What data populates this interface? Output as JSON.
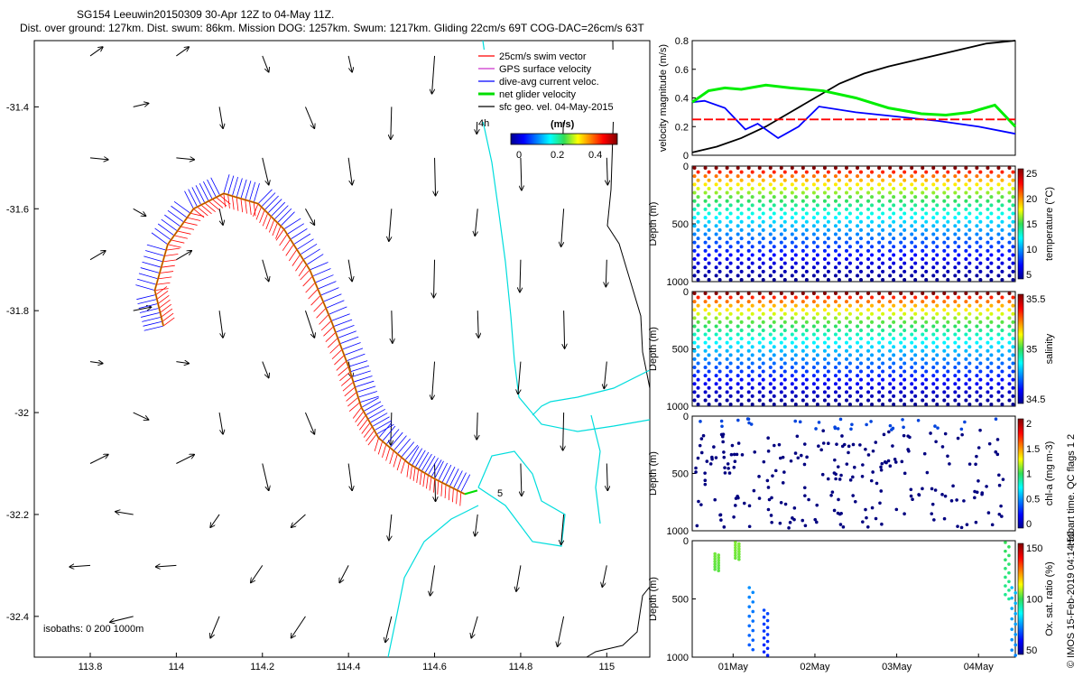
{
  "header": {
    "title_line1": "SG154 Leeuwin20150309 30-Apr 12Z to 04-May 11Z.",
    "title_line2": "Dist. over ground: 127km. Dist. swum: 86km. Mission DOG: 1257km. Swum: 1217km. Gliding 22cm/s 69T COG-DAC=26cm/s 63T"
  },
  "map": {
    "xticks": [
      "113.8",
      "114",
      "114.2",
      "114.4",
      "114.6",
      "114.8",
      "115"
    ],
    "yticks": [
      "-31.4",
      "-31.6",
      "-31.8",
      "-32",
      "-32.2",
      "-32.4"
    ],
    "xlim": [
      113.67,
      115.1
    ],
    "ylim": [
      -32.48,
      -31.27
    ],
    "legend": [
      {
        "label": "25cm/s swim vector",
        "color": "#ff0000"
      },
      {
        "label": "GPS surface velocity",
        "color": "#cc33cc"
      },
      {
        "label": "dive-avg current veloc.",
        "color": "#0000ff"
      },
      {
        "label": "net glider velocity",
        "color": "#00dd00"
      },
      {
        "label": "sfc geo. vel. 04-May-2015",
        "color": "#000000"
      }
    ],
    "colorbar": {
      "title": "(m/s)",
      "ticks": [
        "0",
        "0.2",
        "0.4"
      ]
    },
    "time_marker": "4h",
    "end_label": "5",
    "isobaths_label": "isobaths: 0   200  1000m",
    "track_points": [
      [
        113.97,
        -31.83
      ],
      [
        113.95,
        -31.76
      ],
      [
        113.98,
        -31.67
      ],
      [
        114.04,
        -31.6
      ],
      [
        114.11,
        -31.57
      ],
      [
        114.19,
        -31.59
      ],
      [
        114.25,
        -31.64
      ],
      [
        114.31,
        -31.72
      ],
      [
        114.36,
        -31.82
      ],
      [
        114.4,
        -31.91
      ],
      [
        114.43,
        -31.99
      ],
      [
        114.47,
        -32.05
      ],
      [
        114.54,
        -32.1
      ],
      [
        114.6,
        -32.13
      ],
      [
        114.67,
        -32.16
      ]
    ]
  },
  "chart_data": [
    {
      "type": "line",
      "title": "",
      "xlabel": "",
      "ylabel": "velocity magnitude (m/s)",
      "ylim": [
        0,
        0.8
      ],
      "yticks": [
        "0",
        "0.2",
        "0.4",
        "0.6",
        "0.8"
      ],
      "series": [
        {
          "name": "cumulative",
          "color": "#000000",
          "x": [
            0,
            0.3,
            0.6,
            0.9,
            1.2,
            1.5,
            1.8,
            2.1,
            2.4,
            2.7,
            3.0,
            3.3,
            3.6,
            3.95
          ],
          "values": [
            0.02,
            0.06,
            0.12,
            0.2,
            0.3,
            0.4,
            0.5,
            0.57,
            0.62,
            0.66,
            0.7,
            0.74,
            0.78,
            0.8
          ]
        },
        {
          "name": "blue",
          "color": "#0000ff",
          "x": [
            0,
            0.15,
            0.4,
            0.65,
            0.8,
            1.05,
            1.3,
            1.55,
            2.0,
            2.5,
            3.0,
            3.5,
            3.95
          ],
          "values": [
            0.37,
            0.38,
            0.33,
            0.18,
            0.22,
            0.12,
            0.2,
            0.34,
            0.3,
            0.27,
            0.24,
            0.2,
            0.15
          ]
        },
        {
          "name": "green",
          "color": "#00ee00",
          "x": [
            0,
            0.2,
            0.4,
            0.6,
            0.9,
            1.2,
            1.6,
            2.0,
            2.4,
            2.8,
            3.1,
            3.4,
            3.7,
            3.95
          ],
          "values": [
            0.37,
            0.45,
            0.47,
            0.46,
            0.49,
            0.47,
            0.45,
            0.4,
            0.33,
            0.29,
            0.28,
            0.3,
            0.35,
            0.2
          ]
        },
        {
          "name": "red dashed",
          "color": "#ff0000",
          "x": [
            0,
            3.95
          ],
          "values": [
            0.25,
            0.25
          ]
        }
      ]
    },
    {
      "type": "scatter",
      "title": "",
      "xlabel": "",
      "ylabel": "Depth (m)",
      "ylim": [
        1000,
        0
      ],
      "yticks": [
        "0",
        "500",
        "1000"
      ],
      "colorbar_label": "temperature (°C)",
      "colorbar_ticks": [
        "5",
        "10",
        "15",
        "20",
        "25"
      ]
    },
    {
      "type": "scatter",
      "title": "",
      "xlabel": "",
      "ylabel": "Depth (m)",
      "ylim": [
        1000,
        0
      ],
      "yticks": [
        "0",
        "500",
        "1000"
      ],
      "colorbar_label": "salinity",
      "colorbar_ticks": [
        "34.5",
        "35",
        "35.5"
      ]
    },
    {
      "type": "scatter",
      "title": "",
      "xlabel": "",
      "ylabel": "Depth (m)",
      "ylim": [
        1000,
        0
      ],
      "yticks": [
        "0",
        "500",
        "1000"
      ],
      "colorbar_label": "chl-a (mg m-3)",
      "colorbar_ticks": [
        "0",
        "0.5",
        "1",
        "1.5",
        "2"
      ]
    },
    {
      "type": "scatter",
      "title": "",
      "xlabel": "",
      "ylabel": "Depth (m)",
      "ylim": [
        1000,
        0
      ],
      "yticks": [
        "0",
        "500",
        "1000"
      ],
      "colorbar_label": "Ox. sat. ratio (%)",
      "colorbar_ticks": [
        "50",
        "100",
        "150"
      ],
      "xticks": [
        "01May",
        "02May",
        "03May",
        "04May"
      ]
    }
  ],
  "flags_label": "Hobart time. QC flags 1  2",
  "footer": "© IMOS 15-Feb-2019 04:14:50"
}
